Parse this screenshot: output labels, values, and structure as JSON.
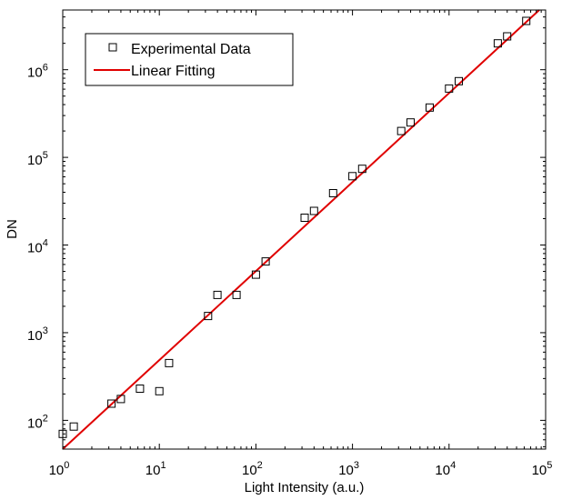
{
  "chart_data": {
    "type": "scatter",
    "xlabel": "Light Intensity (a.u.)",
    "ylabel": "DN",
    "xscale": "log",
    "yscale": "log",
    "xlim": [
      1,
      100000
    ],
    "ylim": [
      47,
      4800000
    ],
    "x_ticks": [
      {
        "base": "10",
        "exp": "0"
      },
      {
        "base": "10",
        "exp": "1"
      },
      {
        "base": "10",
        "exp": "2"
      },
      {
        "base": "10",
        "exp": "3"
      },
      {
        "base": "10",
        "exp": "4"
      },
      {
        "base": "10",
        "exp": "5"
      }
    ],
    "y_ticks": [
      {
        "base": "10",
        "exp": "2"
      },
      {
        "base": "10",
        "exp": "3"
      },
      {
        "base": "10",
        "exp": "4"
      },
      {
        "base": "10",
        "exp": "5"
      },
      {
        "base": "10",
        "exp": "6"
      }
    ],
    "grid": false,
    "legend_position": "top-left",
    "series": [
      {
        "name": "Experimental Data",
        "marker": "square",
        "color": "#000000",
        "points": [
          {
            "x": 1.0,
            "y": 70
          },
          {
            "x": 1.3,
            "y": 85
          },
          {
            "x": 3.2,
            "y": 155
          },
          {
            "x": 4.0,
            "y": 175
          },
          {
            "x": 6.3,
            "y": 230
          },
          {
            "x": 10,
            "y": 215
          },
          {
            "x": 12.6,
            "y": 450
          },
          {
            "x": 32,
            "y": 1550
          },
          {
            "x": 40,
            "y": 2700
          },
          {
            "x": 63,
            "y": 2700
          },
          {
            "x": 100,
            "y": 4600
          },
          {
            "x": 126,
            "y": 6500
          },
          {
            "x": 320,
            "y": 20500
          },
          {
            "x": 400,
            "y": 24500
          },
          {
            "x": 630,
            "y": 39000
          },
          {
            "x": 1000,
            "y": 61000
          },
          {
            "x": 1260,
            "y": 74000
          },
          {
            "x": 3200,
            "y": 200000
          },
          {
            "x": 4000,
            "y": 250000
          },
          {
            "x": 6300,
            "y": 370000
          },
          {
            "x": 10000,
            "y": 610000
          },
          {
            "x": 12600,
            "y": 740000
          },
          {
            "x": 32000,
            "y": 2000000
          },
          {
            "x": 40000,
            "y": 2400000
          },
          {
            "x": 63000,
            "y": 3600000
          }
        ]
      },
      {
        "name": "Linear Fitting",
        "type": "line",
        "color": "#e00000",
        "points": [
          {
            "x": 1,
            "y": 47
          },
          {
            "x": 86000,
            "y": 4800000
          }
        ]
      }
    ]
  }
}
